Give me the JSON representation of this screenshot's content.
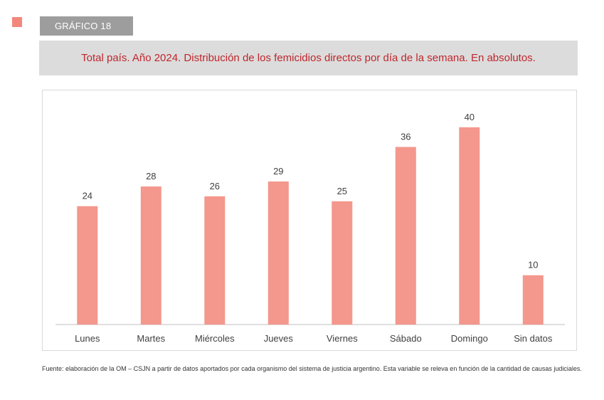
{
  "header": {
    "badge": "GRÁFICO 18",
    "title": "Total país. Año 2024. Distribución de los femicidios directos por día de la semana. En absolutos."
  },
  "footnote": {
    "text": "Fuente: elaboración de la OM – CSJN a partir de datos aportados por cada organismo del sistema de justicia argentino.  Esta variable se releva en función de la cantidad de causas judiciales."
  },
  "colors": {
    "bar": "#f4978c",
    "marker": "#f4877b",
    "badge_bg": "#9d9d9d",
    "title_bg": "#dcdcdc",
    "title_text": "#c0262d"
  },
  "chart_data": {
    "type": "bar",
    "categories": [
      "Lunes",
      "Martes",
      "Miércoles",
      "Jueves",
      "Viernes",
      "Sábado",
      "Domingo",
      "Sin datos"
    ],
    "values": [
      24,
      28,
      26,
      29,
      25,
      36,
      40,
      10
    ],
    "title": "",
    "xlabel": "",
    "ylabel": "",
    "ylim": [
      0,
      42
    ],
    "grid": false,
    "legend": "none",
    "data_labels": true
  }
}
